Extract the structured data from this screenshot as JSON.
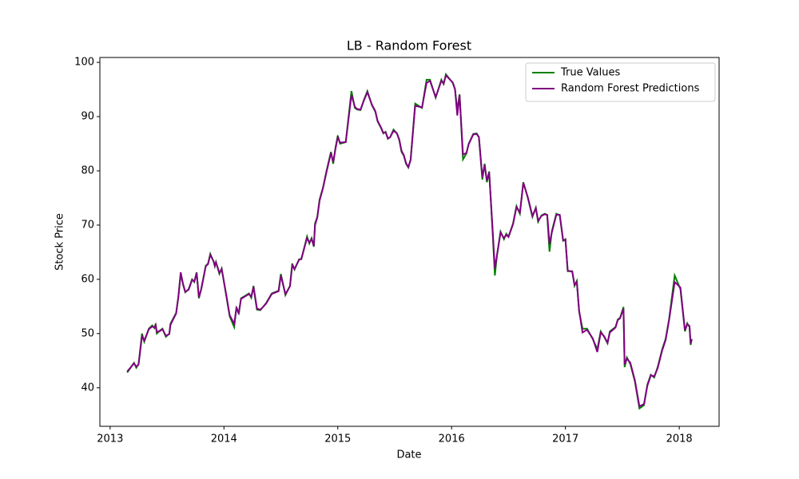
{
  "chart_data": {
    "type": "line",
    "title": "LB - Random Forest",
    "x_label": "Date",
    "y_label": "Stock Price",
    "x": [
      2013.15,
      2013.21,
      2013.23,
      2013.25,
      2013.28,
      2013.3,
      2013.34,
      2013.37,
      2013.39,
      2013.4,
      2013.41,
      2013.44,
      2013.46,
      2013.49,
      2013.52,
      2013.53,
      2013.58,
      2013.6,
      2013.62,
      2013.64,
      2013.66,
      2013.69,
      2013.72,
      2013.74,
      2013.76,
      2013.78,
      2013.8,
      2013.84,
      2013.86,
      2013.88,
      2013.91,
      2013.92,
      2013.93,
      2013.96,
      2013.98,
      2014.02,
      2014.05,
      2014.09,
      2014.11,
      2014.13,
      2014.15,
      2014.19,
      2014.22,
      2014.24,
      2014.26,
      2014.27,
      2014.29,
      2014.32,
      2014.37,
      2014.42,
      2014.48,
      2014.5,
      2014.54,
      2014.58,
      2014.6,
      2014.62,
      2014.66,
      2014.68,
      2014.73,
      2014.75,
      2014.77,
      2014.79,
      2014.8,
      2014.82,
      2014.84,
      2014.87,
      2014.9,
      2014.94,
      2014.96,
      2014.98,
      2015.0,
      2015.02,
      2015.07,
      2015.12,
      2015.15,
      2015.17,
      2015.2,
      2015.23,
      2015.26,
      2015.3,
      2015.33,
      2015.35,
      2015.38,
      2015.4,
      2015.42,
      2015.44,
      2015.46,
      2015.49,
      2015.52,
      2015.54,
      2015.56,
      2015.58,
      2015.6,
      2015.62,
      2015.64,
      2015.68,
      2015.74,
      2015.78,
      2015.81,
      2015.86,
      2015.91,
      2015.93,
      2015.95,
      2016.01,
      2016.03,
      2016.05,
      2016.07,
      2016.1,
      2016.13,
      2016.15,
      2016.19,
      2016.22,
      2016.24,
      2016.27,
      2016.29,
      2016.31,
      2016.33,
      2016.36,
      2016.38,
      2016.4,
      2016.43,
      2016.46,
      2016.48,
      2016.5,
      2016.54,
      2016.57,
      2016.6,
      2016.63,
      2016.67,
      2016.71,
      2016.74,
      2016.76,
      2016.79,
      2016.82,
      2016.84,
      2016.86,
      2016.88,
      2016.92,
      2016.95,
      2016.98,
      2017.0,
      2017.02,
      2017.06,
      2017.08,
      2017.1,
      2017.12,
      2017.15,
      2017.19,
      2017.24,
      2017.28,
      2017.31,
      2017.34,
      2017.37,
      2017.39,
      2017.44,
      2017.46,
      2017.48,
      2017.51,
      2017.52,
      2017.54,
      2017.57,
      2017.61,
      2017.65,
      2017.69,
      2017.72,
      2017.75,
      2017.78,
      2017.81,
      2017.85,
      2017.88,
      2017.91,
      2017.96,
      2018.01,
      2018.05,
      2018.07,
      2018.09,
      2018.1,
      2018.11
    ],
    "series": [
      {
        "name": "True Values",
        "color": "#008000",
        "values": [
          42.8,
          44.6,
          43.7,
          44.4,
          50.0,
          48.5,
          50.9,
          51.5,
          51.0,
          51.8,
          50.0,
          50.6,
          50.9,
          49.4,
          50.0,
          51.8,
          53.8,
          56.8,
          61.0,
          59.1,
          57.6,
          58.2,
          60.0,
          59.5,
          61.3,
          56.5,
          58.2,
          62.5,
          62.9,
          64.7,
          63.2,
          62.4,
          63.2,
          61.0,
          62.0,
          57.0,
          53.2,
          51.2,
          54.9,
          53.6,
          56.5,
          57.0,
          57.4,
          56.6,
          58.8,
          57.1,
          54.4,
          54.3,
          55.6,
          57.4,
          57.9,
          61.0,
          57.1,
          58.8,
          62.9,
          61.8,
          63.7,
          63.7,
          67.9,
          66.6,
          67.6,
          66.0,
          70.3,
          71.5,
          74.7,
          76.9,
          79.9,
          83.5,
          81.3,
          84.3,
          86.5,
          85.0,
          85.3,
          94.7,
          91.6,
          91.3,
          91.2,
          93.1,
          94.7,
          92.1,
          90.9,
          89.1,
          87.9,
          86.9,
          87.2,
          85.9,
          86.2,
          87.6,
          86.9,
          85.7,
          83.5,
          82.8,
          81.3,
          80.6,
          82.1,
          92.4,
          91.6,
          96.8,
          96.8,
          93.5,
          96.8,
          96.0,
          97.8,
          96.2,
          95.0,
          91.2,
          94.1,
          82.1,
          83.2,
          85.0,
          86.8,
          86.9,
          86.2,
          78.4,
          81.3,
          77.9,
          79.9,
          68.8,
          60.7,
          64.7,
          68.8,
          67.4,
          68.4,
          67.9,
          70.3,
          73.5,
          72.1,
          77.9,
          75.0,
          71.5,
          73.2,
          70.6,
          71.8,
          72.1,
          71.8,
          65.1,
          68.8,
          72.1,
          71.8,
          67.1,
          67.4,
          61.5,
          61.5,
          58.8,
          59.7,
          54.1,
          50.9,
          50.9,
          49.0,
          47.1,
          50.4,
          49.4,
          48.2,
          50.4,
          51.2,
          52.6,
          52.9,
          54.9,
          43.8,
          45.6,
          44.4,
          41.2,
          36.2,
          36.8,
          40.6,
          42.4,
          41.9,
          43.8,
          47.1,
          49.0,
          52.6,
          60.7,
          58.2,
          50.4,
          51.9,
          51.2,
          47.9,
          49.0
        ]
      },
      {
        "name": "Random Forest Predictions",
        "color": "#800080",
        "values": [
          43.0,
          44.5,
          43.9,
          44.3,
          49.5,
          48.7,
          50.8,
          51.3,
          51.1,
          51.6,
          50.3,
          50.5,
          50.8,
          49.6,
          49.9,
          51.6,
          53.7,
          56.9,
          61.3,
          59.2,
          57.7,
          58.1,
          59.9,
          59.6,
          61.2,
          56.7,
          58.1,
          62.4,
          62.8,
          64.5,
          63.3,
          62.5,
          63.1,
          61.2,
          61.9,
          57.2,
          53.4,
          51.8,
          54.7,
          53.8,
          56.4,
          56.9,
          57.3,
          56.8,
          58.6,
          57.3,
          54.6,
          54.4,
          55.5,
          57.3,
          57.8,
          60.7,
          57.3,
          58.7,
          62.6,
          61.9,
          63.6,
          63.8,
          67.6,
          66.8,
          67.4,
          66.2,
          70.0,
          71.4,
          74.5,
          76.8,
          79.7,
          83.3,
          81.6,
          84.1,
          86.2,
          85.2,
          85.3,
          94.0,
          91.8,
          91.4,
          91.3,
          93.0,
          94.5,
          92.2,
          91.0,
          89.2,
          88.0,
          87.0,
          87.1,
          86.0,
          86.2,
          87.4,
          86.9,
          85.8,
          83.7,
          82.9,
          81.4,
          80.7,
          82.0,
          92.0,
          91.7,
          96.2,
          96.6,
          93.6,
          96.6,
          96.1,
          97.6,
          96.3,
          95.1,
          90.2,
          94.0,
          83.0,
          83.3,
          84.9,
          86.7,
          86.8,
          86.2,
          78.8,
          81.1,
          78.2,
          79.7,
          69.3,
          62.0,
          64.6,
          68.6,
          67.6,
          68.2,
          67.8,
          70.2,
          73.3,
          72.3,
          77.8,
          75.1,
          71.7,
          73.1,
          70.8,
          71.7,
          72.0,
          71.9,
          66.5,
          68.6,
          71.9,
          71.9,
          67.2,
          67.3,
          61.6,
          61.4,
          59.0,
          59.5,
          54.3,
          50.2,
          50.7,
          49.1,
          46.6,
          50.2,
          49.5,
          48.3,
          50.2,
          51.1,
          52.5,
          52.8,
          54.6,
          44.3,
          45.4,
          44.6,
          41.4,
          36.6,
          37.0,
          40.4,
          42.3,
          42.1,
          43.6,
          46.9,
          48.8,
          52.4,
          59.5,
          58.5,
          50.6,
          51.7,
          51.4,
          48.2,
          48.9
        ]
      }
    ],
    "xlim": [
      2012.91,
      2018.35
    ],
    "xticks": [
      2013,
      2014,
      2015,
      2016,
      2017,
      2018
    ],
    "ylim": [
      32.9,
      100.9
    ],
    "yticks": [
      40,
      50,
      60,
      70,
      80,
      90,
      100
    ],
    "legend": "upper right"
  }
}
